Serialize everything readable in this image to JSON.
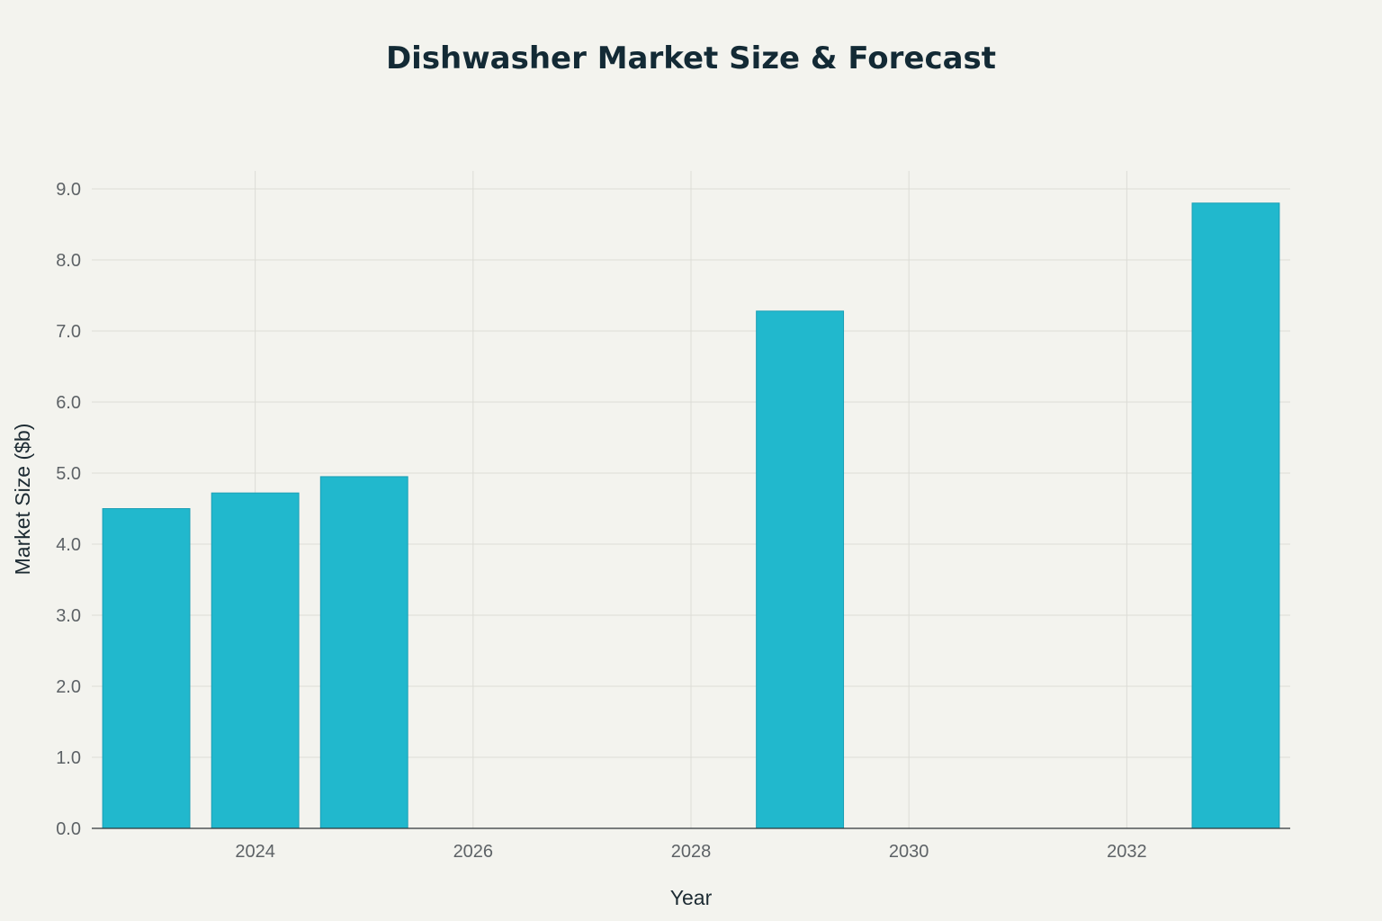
{
  "colors": {
    "background": "#f3f3ee",
    "bar": "#21b8cd",
    "title": "#132a35"
  },
  "chart_data": {
    "type": "bar",
    "title": "Dishwasher Market Size & Forecast",
    "xlabel": "Year",
    "ylabel": "Market Size ($b)",
    "x": [
      2023,
      2024,
      2025,
      2029,
      2033
    ],
    "values": [
      4.5,
      4.72,
      4.95,
      7.28,
      8.8
    ],
    "xlim": [
      2022.5,
      2033.5
    ],
    "ylim": [
      0,
      9.0
    ],
    "xticks": [
      2024,
      2026,
      2028,
      2030,
      2032
    ],
    "yticks": [
      0,
      1,
      2,
      3,
      4,
      5,
      6,
      7,
      8,
      9
    ],
    "ytick_labels": [
      "0.0",
      "1.0",
      "2.0",
      "3.0",
      "4.0",
      "5.0",
      "6.0",
      "7.0",
      "8.0",
      "9.0"
    ],
    "grid": true,
    "legend": "none"
  }
}
